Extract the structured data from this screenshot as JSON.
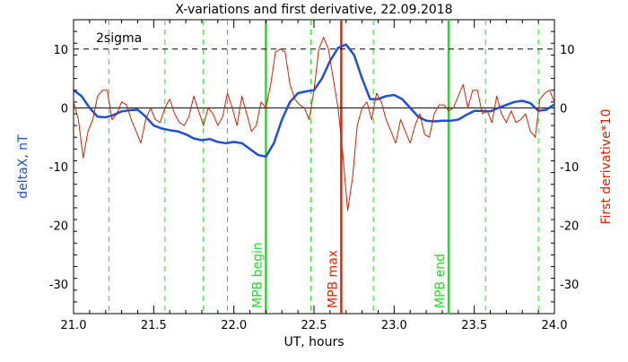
{
  "chart_data": {
    "type": "line",
    "title": "X-variations and first derivative, 22.09.2018",
    "xlabel": "UT, hours",
    "ylabel_left": "deltaX, nT",
    "ylabel_right": "First derivative*10",
    "xlim": [
      21.0,
      24.0
    ],
    "ylim": [
      -35,
      15
    ],
    "x_ticks": [
      "21.0",
      "21.5",
      "22.0",
      "22.5",
      "23.0",
      "23.5",
      "24.0"
    ],
    "x_tick_values": [
      21.0,
      21.5,
      22.0,
      22.5,
      23.0,
      23.5,
      24.0
    ],
    "y_ticks": [
      "-30",
      "-20",
      "-10",
      "0",
      "10"
    ],
    "y_tick_values": [
      -30,
      -20,
      -10,
      0,
      10
    ],
    "threshold_label": "2sigma",
    "threshold_value": 10,
    "zero_line": 0,
    "grid": false,
    "colors": {
      "deltaX": "#1f4fd8",
      "derivative": "#cc2200",
      "mpb_boundary": "#22dd22",
      "mpb_max": "#ee2200",
      "dashed_markers": "#22dd22",
      "threshold": "#000000"
    },
    "dashed_markers_x": [
      21.22,
      21.57,
      21.81,
      21.96,
      22.48,
      22.87,
      23.57,
      23.9
    ],
    "markers": [
      {
        "label": "MPB begin",
        "x": 22.2,
        "color": "#22dd22"
      },
      {
        "label": "MPB max",
        "x": 22.67,
        "color": "#ee2200"
      },
      {
        "label": "MPB end",
        "x": 23.34,
        "color": "#22dd22"
      }
    ],
    "series": [
      {
        "name": "deltaX",
        "axis": "left",
        "x": [
          21.0,
          21.05,
          21.1,
          21.15,
          21.2,
          21.25,
          21.3,
          21.35,
          21.4,
          21.45,
          21.5,
          21.55,
          21.6,
          21.65,
          21.7,
          21.75,
          21.8,
          21.85,
          21.9,
          21.95,
          22.0,
          22.05,
          22.1,
          22.15,
          22.2,
          22.25,
          22.3,
          22.35,
          22.4,
          22.45,
          22.5,
          22.55,
          22.6,
          22.65,
          22.7,
          22.75,
          22.8,
          22.85,
          22.9,
          22.95,
          23.0,
          23.05,
          23.1,
          23.15,
          23.2,
          23.25,
          23.3,
          23.35,
          23.4,
          23.45,
          23.5,
          23.55,
          23.6,
          23.65,
          23.7,
          23.75,
          23.8,
          23.85,
          23.9,
          23.95,
          24.0
        ],
        "values": [
          3.0,
          2.0,
          0.0,
          -1.5,
          -1.6,
          -1.2,
          -0.6,
          -0.4,
          -0.3,
          -1.5,
          -3.0,
          -3.5,
          -3.8,
          -4.0,
          -4.5,
          -5.2,
          -5.5,
          -5.3,
          -5.8,
          -6.0,
          -5.8,
          -6.0,
          -7.0,
          -8.0,
          -8.3,
          -6.0,
          -2.0,
          1.0,
          2.5,
          2.8,
          3.0,
          5.0,
          8.0,
          10.2,
          10.8,
          9.0,
          5.0,
          1.5,
          1.5,
          2.0,
          2.2,
          1.5,
          0.0,
          -1.5,
          -2.2,
          -2.3,
          -2.2,
          -2.2,
          -2.0,
          -1.2,
          -0.5,
          -0.5,
          -0.6,
          0.0,
          0.5,
          1.0,
          1.2,
          0.8,
          -0.5,
          -0.3,
          0.6
        ]
      },
      {
        "name": "First derivative*10",
        "axis": "right",
        "x": [
          21.0,
          21.03,
          21.06,
          21.09,
          21.12,
          21.15,
          21.18,
          21.21,
          21.24,
          21.27,
          21.3,
          21.33,
          21.36,
          21.39,
          21.42,
          21.45,
          21.48,
          21.51,
          21.54,
          21.57,
          21.6,
          21.63,
          21.66,
          21.69,
          21.72,
          21.75,
          21.78,
          21.81,
          21.84,
          21.87,
          21.9,
          21.93,
          21.96,
          21.99,
          22.02,
          22.05,
          22.08,
          22.11,
          22.14,
          22.17,
          22.2,
          22.23,
          22.26,
          22.29,
          22.32,
          22.35,
          22.38,
          22.41,
          22.44,
          22.47,
          22.5,
          22.53,
          22.56,
          22.59,
          22.62,
          22.65,
          22.68,
          22.71,
          22.74,
          22.77,
          22.8,
          22.83,
          22.86,
          22.89,
          22.92,
          22.95,
          22.98,
          23.01,
          23.04,
          23.07,
          23.1,
          23.13,
          23.16,
          23.19,
          23.22,
          23.25,
          23.28,
          23.31,
          23.34,
          23.37,
          23.4,
          23.43,
          23.46,
          23.49,
          23.52,
          23.55,
          23.58,
          23.61,
          23.64,
          23.67,
          23.7,
          23.73,
          23.76,
          23.79,
          23.82,
          23.85,
          23.88,
          23.91,
          23.94,
          23.97,
          24.0
        ],
        "values": [
          1.0,
          -2.0,
          -8.5,
          -4.0,
          -2.0,
          2.0,
          3.0,
          3.0,
          -2.0,
          -1.0,
          1.0,
          0.5,
          -2.0,
          -4.0,
          -6.0,
          -2.0,
          0.0,
          -2.0,
          -2.5,
          0.0,
          1.5,
          -1.0,
          -2.5,
          -3.0,
          -1.5,
          2.0,
          -0.5,
          -3.0,
          0.0,
          -1.0,
          -3.0,
          -1.5,
          2.5,
          0.0,
          -3.0,
          2.0,
          -1.0,
          -4.0,
          -3.0,
          1.0,
          0.0,
          4.0,
          9.5,
          10.0,
          9.5,
          4.0,
          1.5,
          0.5,
          0.0,
          -2.0,
          3.0,
          10.0,
          12.0,
          10.0,
          5.0,
          0.0,
          -8.0,
          -17.5,
          -12.0,
          -3.0,
          0.0,
          1.0,
          -2.0,
          2.5,
          1.0,
          -2.0,
          -4.0,
          -6.0,
          -2.0,
          -4.0,
          -6.0,
          -3.0,
          -1.0,
          -4.5,
          -5.0,
          -1.0,
          0.5,
          0.5,
          -0.5,
          0.0,
          2.0,
          4.0,
          0.0,
          3.0,
          3.0,
          -1.0,
          -0.5,
          -2.5,
          2.0,
          -1.0,
          -2.5,
          -0.5,
          -2.5,
          -2.0,
          -1.0,
          -4.0,
          -5.0,
          1.5,
          2.5,
          3.0,
          1.0
        ]
      }
    ]
  }
}
